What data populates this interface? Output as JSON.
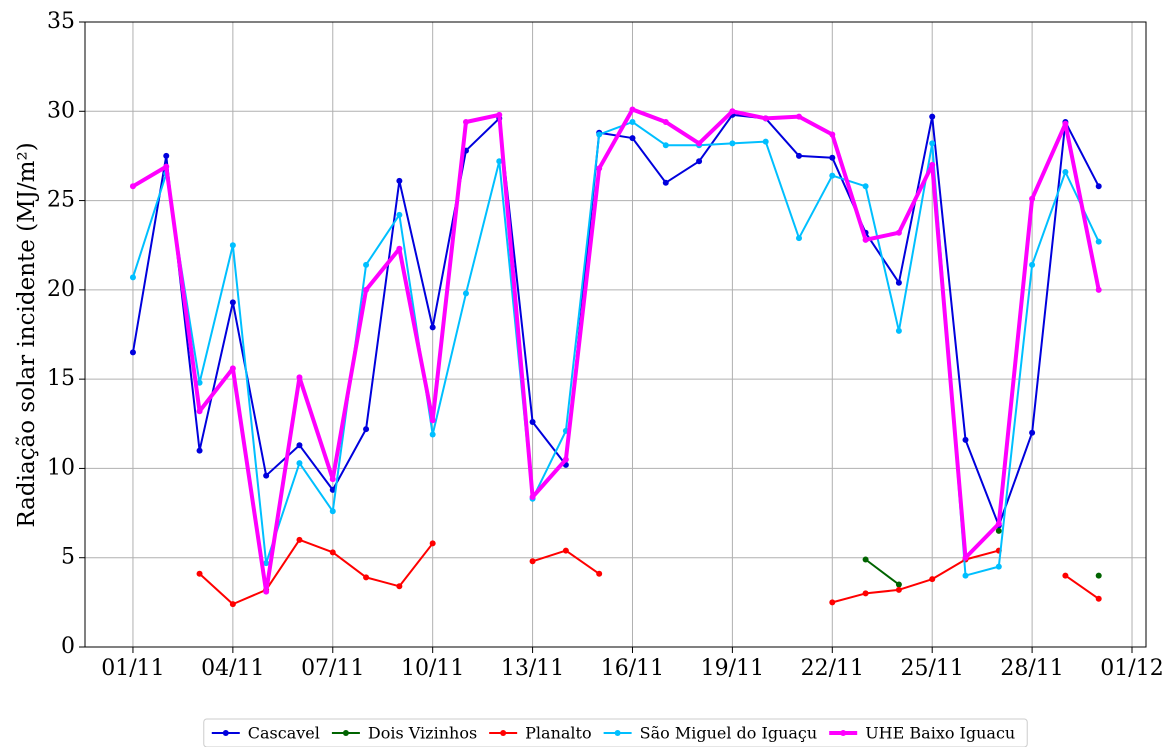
{
  "chart_data": {
    "type": "line",
    "y_label": "Radiação solar incidente  (MJ/m²)",
    "x": [
      "01/11",
      "02/11",
      "03/11",
      "04/11",
      "05/11",
      "06/11",
      "07/11",
      "08/11",
      "09/11",
      "10/11",
      "11/11",
      "12/11",
      "13/11",
      "14/11",
      "15/11",
      "16/11",
      "17/11",
      "18/11",
      "19/11",
      "20/11",
      "21/11",
      "22/11",
      "23/11",
      "24/11",
      "25/11",
      "26/11",
      "27/11",
      "28/11",
      "29/11",
      "30/11"
    ],
    "xticks": [
      "01/11",
      "04/11",
      "07/11",
      "10/11",
      "13/11",
      "16/11",
      "19/11",
      "22/11",
      "25/11",
      "28/11",
      "01/12"
    ],
    "ylim": [
      0,
      35
    ],
    "yticks": [
      0,
      5,
      10,
      15,
      20,
      25,
      30,
      35
    ],
    "grid": true,
    "legend": "bottom",
    "series": [
      {
        "name": "Cascavel",
        "color": "#0000dd",
        "width": 2,
        "values": [
          16.5,
          27.5,
          11.0,
          19.3,
          9.6,
          11.3,
          8.8,
          12.2,
          26.1,
          17.9,
          27.8,
          29.6,
          12.6,
          10.2,
          28.8,
          28.5,
          26.0,
          27.2,
          29.8,
          29.6,
          27.5,
          27.4,
          23.2,
          20.4,
          29.7,
          11.6,
          6.8,
          12.0,
          29.4,
          25.8
        ]
      },
      {
        "name": "Dois Vizinhos",
        "color": "#006400",
        "width": 2,
        "values": [
          null,
          null,
          null,
          null,
          null,
          null,
          null,
          null,
          null,
          null,
          null,
          null,
          null,
          null,
          null,
          null,
          null,
          null,
          null,
          null,
          null,
          null,
          4.9,
          3.5,
          null,
          null,
          6.5,
          null,
          null,
          4.0
        ]
      },
      {
        "name": "Planalto",
        "color": "#ff0000",
        "width": 2,
        "values": [
          null,
          null,
          4.1,
          2.4,
          3.2,
          6.0,
          5.3,
          3.9,
          3.4,
          5.8,
          null,
          null,
          4.8,
          5.4,
          4.1,
          null,
          null,
          null,
          null,
          null,
          null,
          2.5,
          3.0,
          3.2,
          3.8,
          4.9,
          5.4,
          null,
          4.0,
          2.7
        ]
      },
      {
        "name": "São Miguel do Iguaçu",
        "color": "#00bfff",
        "width": 2,
        "values": [
          20.7,
          26.5,
          14.8,
          22.5,
          4.7,
          10.3,
          7.6,
          21.4,
          24.2,
          11.9,
          19.8,
          27.2,
          8.3,
          12.1,
          28.7,
          29.4,
          28.1,
          28.1,
          28.2,
          28.3,
          22.9,
          26.4,
          25.8,
          17.7,
          28.2,
          4.0,
          4.5,
          21.4,
          26.6,
          22.7
        ]
      },
      {
        "name": "UHE Baixo Iguacu",
        "color": "#ff00ff",
        "width": 4,
        "values": [
          25.8,
          26.9,
          13.2,
          15.6,
          3.1,
          15.1,
          9.4,
          20.0,
          22.3,
          12.7,
          29.4,
          29.8,
          8.4,
          10.5,
          26.8,
          30.1,
          29.4,
          28.2,
          30.0,
          29.6,
          29.7,
          28.7,
          22.8,
          23.2,
          27.0,
          5.0,
          6.9,
          25.1,
          29.3,
          20.0
        ]
      }
    ]
  }
}
